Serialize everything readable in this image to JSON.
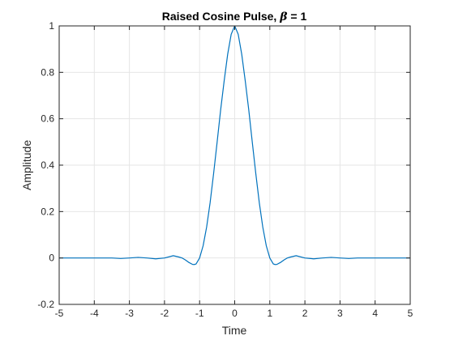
{
  "chart_data": {
    "type": "line",
    "title_prefix": "Raised Cosine Pulse, ",
    "title_symbol": "β",
    "title_suffix": " = 1",
    "xlabel": "Time",
    "ylabel": "Amplitude",
    "xlim": [
      -5,
      5
    ],
    "ylim": [
      -0.2,
      1
    ],
    "xticks": [
      -5,
      -4,
      -3,
      -2,
      -1,
      0,
      1,
      2,
      3,
      4,
      5
    ],
    "xtick_labels": [
      "-5",
      "-4",
      "-3",
      "-2",
      "-1",
      "0",
      "1",
      "2",
      "3",
      "4",
      "5"
    ],
    "yticks": [
      -0.2,
      0,
      0.2,
      0.4,
      0.6,
      0.8,
      1
    ],
    "ytick_labels": [
      "-0.2",
      "0",
      "0.2",
      "0.4",
      "0.6",
      "0.8",
      "1"
    ],
    "grid": true,
    "line_color": "#0072bd",
    "series": [
      {
        "x": [
          -5,
          -4.5,
          -4,
          -3.5,
          -3.25,
          -3,
          -2.75,
          -2.5,
          -2.25,
          -2,
          -1.75,
          -1.6,
          -1.5,
          -1.4,
          -1.3,
          -1.2,
          -1.15,
          -1.1,
          -1.0,
          -0.9,
          -0.8,
          -0.7,
          -0.6,
          -0.5,
          -0.4,
          -0.3,
          -0.2,
          -0.1,
          0,
          0.1,
          0.2,
          0.3,
          0.4,
          0.5,
          0.6,
          0.7,
          0.8,
          0.9,
          1.0,
          1.1,
          1.15,
          1.2,
          1.3,
          1.4,
          1.5,
          1.6,
          1.75,
          2,
          2.25,
          2.5,
          2.75,
          3,
          3.25,
          3.5,
          4,
          4.5,
          5
        ],
        "y": [
          0,
          0,
          0,
          0,
          -0.0023,
          0,
          0.0025,
          0,
          -0.0038,
          0,
          0.0098,
          0.0045,
          0,
          -0.0089,
          -0.0198,
          -0.0277,
          -0.0282,
          -0.0259,
          -0.0,
          0.0525,
          0.1329,
          0.2387,
          0.365,
          0.5,
          0.6386,
          0.7633,
          0.8779,
          0.9639,
          1.0,
          0.9639,
          0.8779,
          0.7633,
          0.6386,
          0.5,
          0.365,
          0.2387,
          0.1329,
          0.0525,
          -0.0,
          -0.0259,
          -0.0282,
          -0.0277,
          -0.0198,
          -0.0089,
          0,
          0.0045,
          0.0098,
          0,
          -0.0038,
          0,
          0.0025,
          0,
          -0.0023,
          0,
          0,
          0,
          0
        ]
      }
    ]
  }
}
